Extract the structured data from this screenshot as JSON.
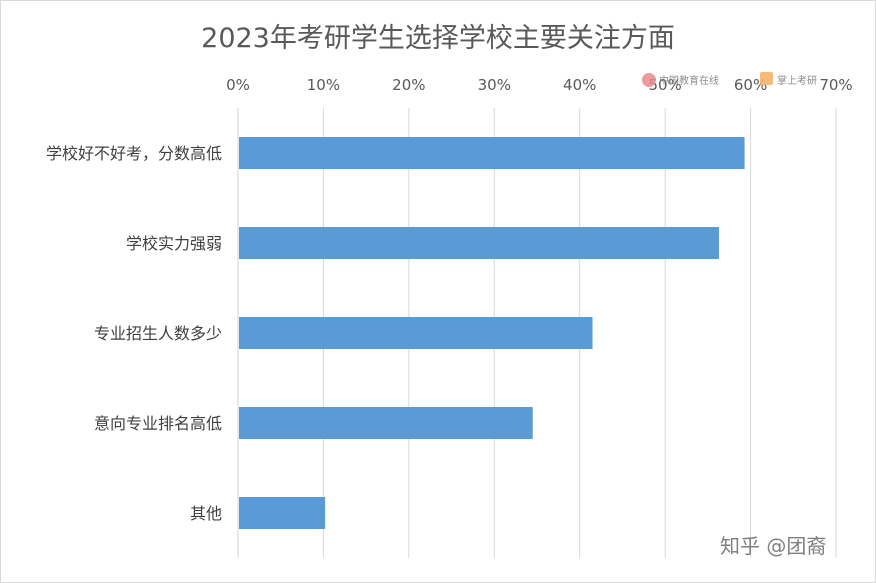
{
  "chart_data": {
    "type": "bar",
    "orientation": "horizontal",
    "title": "2023年考研学生选择学校主要关注方面",
    "categories": [
      "学校好不好考，分数高低",
      "学校实力强弱",
      "专业招生人数多少",
      "意向专业排名高低",
      "其他"
    ],
    "values": [
      59.3,
      56.3,
      41.5,
      34.5,
      10.2
    ],
    "xlim": [
      0,
      70
    ],
    "x_ticks": [
      "0%",
      "10%",
      "20%",
      "30%",
      "40%",
      "50%",
      "60%",
      "70%"
    ],
    "x_axis_position": "top",
    "grid": "vertical",
    "bar_color": "#5b9bd5",
    "grid_color": "#d9d9d9"
  },
  "watermark": {
    "text": "知乎 @团裔",
    "logo1_text": "中国教育在线",
    "logo2_text": "掌上考研"
  }
}
